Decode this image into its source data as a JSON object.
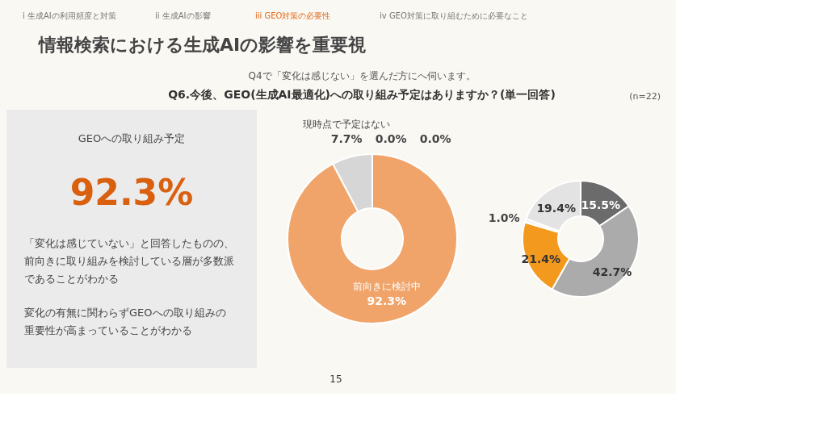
{
  "chart_data": [
    {
      "type": "other",
      "title": "情報検索における生成AIの影響を重要視",
      "subtitle": "Q6.今後、GEO(生成AI最適化)への取り組み予定はありますか？(単一回答)",
      "annotations": [
        "i 生成AIの利用頻度と対策",
        "ii 生成AIの影響",
        "iii GEO対策の必要性",
        "iv GEO対策に取り組むために必要なこと",
        "Q4で「変化は感じない」を選んだ方にへ伺います。",
        "(n=22)",
        "15"
      ]
    },
    {
      "type": "other",
      "title": "GEOへの取り組み予定",
      "annotations": [
        "92.3%",
        "「変化は感じていない」と回答したものの、前向きに取り組みを検討している層が多数派であることがわかる",
        "変化の有無に関わらずGEOへの取り組みの重要性が高まっていることがわかる"
      ]
    },
    {
      "type": "donut",
      "categories": [
        "前向きに検討中",
        "現時点で予定はない",
        null,
        null
      ],
      "values": [
        92.3,
        7.7,
        0.0,
        0.0
      ],
      "value_labels": [
        "92.3%",
        "7.7%",
        "0.0%",
        "0.0%"
      ],
      "colors": [
        "#f0a46a",
        "#d6d6d6",
        "#bdbdbd",
        "#9e9e9e"
      ]
    },
    {
      "type": "donut",
      "categories": [
        null,
        null,
        null,
        null,
        null
      ],
      "values": [
        15.5,
        42.7,
        21.4,
        1.0,
        19.4
      ],
      "value_labels": [
        "15.5%",
        "42.7%",
        "21.4%",
        "1.0%",
        "19.4%"
      ],
      "colors": [
        "#6b6b6b",
        "#ababab",
        "#f39a1e",
        "#f2f2f2",
        "#e3e3e3"
      ]
    }
  ]
}
